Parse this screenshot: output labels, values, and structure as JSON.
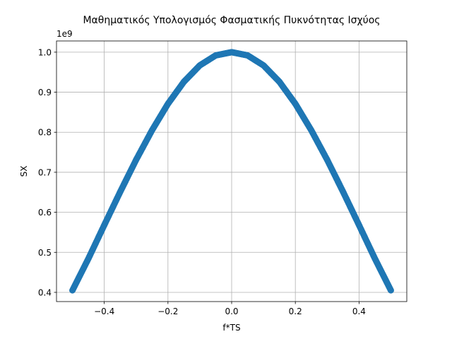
{
  "chart_data": {
    "type": "scatter",
    "title": "Μαθηματικός Υπολογισμός Φασματικής Πυκνότητας Ισχύος",
    "xlabel": "f*TS",
    "ylabel": "SX",
    "offset_text": "1e9",
    "xlim": [
      -0.55,
      0.55
    ],
    "ylim": [
      0.377,
      1.028
    ],
    "xticks": [
      -0.4,
      -0.2,
      0.0,
      0.2,
      0.4
    ],
    "xtick_labels": [
      "−0.4",
      "−0.2",
      "0.0",
      "0.2",
      "0.4"
    ],
    "yticks": [
      0.4,
      0.5,
      0.6,
      0.7,
      0.8,
      0.9,
      1.0
    ],
    "ytick_labels": [
      "0.4",
      "0.5",
      "0.6",
      "0.7",
      "0.8",
      "0.9",
      "1.0"
    ],
    "grid": true,
    "series": [
      {
        "color": "#1f77b4",
        "x": [
          -0.5,
          -0.45,
          -0.4,
          -0.35,
          -0.3,
          -0.25,
          -0.2,
          -0.15,
          -0.1,
          -0.05,
          0.0,
          0.05,
          0.1,
          0.15,
          0.2,
          0.25,
          0.3,
          0.35,
          0.4,
          0.45,
          0.5
        ],
        "y": [
          0.405,
          0.484,
          0.568,
          0.651,
          0.731,
          0.805,
          0.871,
          0.926,
          0.967,
          0.992,
          1.0,
          0.992,
          0.967,
          0.926,
          0.871,
          0.805,
          0.731,
          0.651,
          0.568,
          0.484,
          0.405
        ]
      }
    ]
  }
}
